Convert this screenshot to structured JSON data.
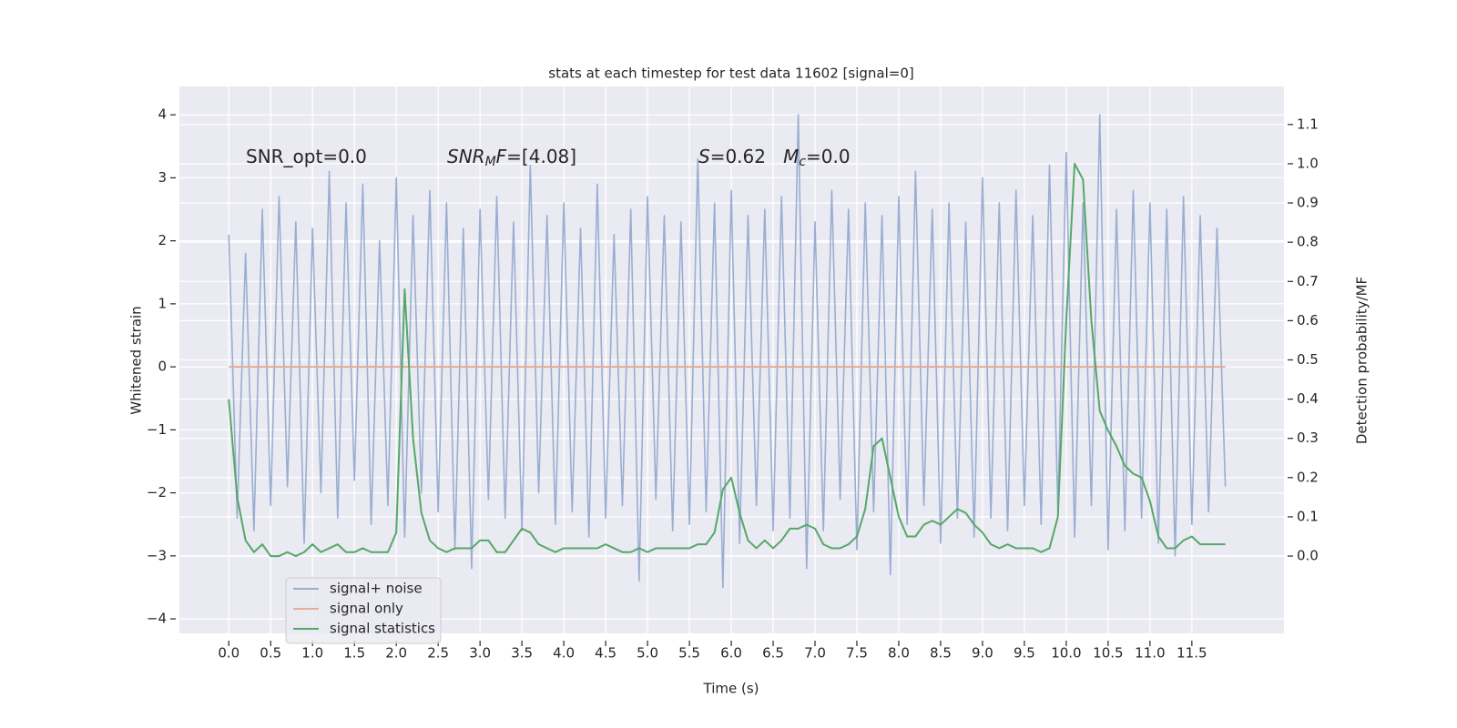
{
  "chart_data": {
    "type": "line",
    "title": "stats at each timestep for test data 11602 [signal=0]",
    "xlabel": "Time (s)",
    "ylabel": "Whitened strain",
    "y2label": "Detection probability/MF",
    "annotations": [
      {
        "parts": [
          {
            "text": "SNR_opt=0.0"
          }
        ]
      },
      {
        "parts": [
          {
            "text": "SNR",
            "italic": true
          },
          {
            "text": "M",
            "italic": true,
            "sub": true
          },
          {
            "text": "F",
            "italic": true
          },
          {
            "text": "=[4.08]"
          }
        ]
      },
      {
        "parts": [
          {
            "text": "S",
            "italic": true
          },
          {
            "text": "=0.62   "
          },
          {
            "text": "M",
            "italic": true
          },
          {
            "text": "c",
            "italic": true,
            "sub": true
          },
          {
            "text": "=0.0"
          }
        ]
      }
    ],
    "x": [
      0.0,
      0.1,
      0.2,
      0.3,
      0.4,
      0.5,
      0.6,
      0.7,
      0.8,
      0.9,
      1.0,
      1.1,
      1.2,
      1.3,
      1.4,
      1.5,
      1.6,
      1.7,
      1.8,
      1.9,
      2.0,
      2.1,
      2.2,
      2.3,
      2.4,
      2.5,
      2.6,
      2.7,
      2.8,
      2.9,
      3.0,
      3.1,
      3.2,
      3.3,
      3.4,
      3.5,
      3.6,
      3.7,
      3.8,
      3.9,
      4.0,
      4.1,
      4.2,
      4.3,
      4.4,
      4.5,
      4.6,
      4.7,
      4.8,
      4.9,
      5.0,
      5.1,
      5.2,
      5.3,
      5.4,
      5.5,
      5.6,
      5.7,
      5.8,
      5.9,
      6.0,
      6.1,
      6.2,
      6.3,
      6.4,
      6.5,
      6.6,
      6.7,
      6.8,
      6.9,
      7.0,
      7.1,
      7.2,
      7.3,
      7.4,
      7.5,
      7.6,
      7.7,
      7.8,
      7.9,
      8.0,
      8.1,
      8.2,
      8.3,
      8.4,
      8.5,
      8.6,
      8.7,
      8.8,
      8.9,
      9.0,
      9.1,
      9.2,
      9.3,
      9.4,
      9.5,
      9.6,
      9.7,
      9.8,
      9.9,
      10.0,
      10.1,
      10.2,
      10.3,
      10.4,
      10.5,
      10.6,
      10.7,
      10.8,
      10.9,
      11.0,
      11.1,
      11.2,
      11.3,
      11.4,
      11.5,
      11.6,
      11.7,
      11.8,
      11.9
    ],
    "series": [
      {
        "name": "signal+ noise",
        "color": "#9aadd2",
        "values": [
          2.1,
          -2.4,
          1.8,
          -2.6,
          2.5,
          -2.2,
          2.7,
          -1.9,
          2.3,
          -2.8,
          2.2,
          -2.0,
          3.1,
          -2.4,
          2.6,
          -1.8,
          2.9,
          -2.5,
          2.0,
          -2.2,
          3.0,
          -2.7,
          2.4,
          -2.0,
          2.8,
          -2.3,
          2.6,
          -2.9,
          2.2,
          -3.2,
          2.5,
          -2.1,
          2.7,
          -2.4,
          2.3,
          -2.6,
          3.2,
          -2.0,
          2.4,
          -2.5,
          2.6,
          -2.3,
          2.2,
          -2.7,
          2.9,
          -2.4,
          2.1,
          -2.2,
          2.5,
          -3.4,
          2.7,
          -2.1,
          2.4,
          -2.6,
          2.3,
          -2.5,
          3.3,
          -2.3,
          2.6,
          -3.5,
          2.8,
          -2.8,
          2.4,
          -2.2,
          2.5,
          -2.6,
          2.7,
          -2.4,
          4.0,
          -3.2,
          2.3,
          -2.6,
          2.8,
          -2.1,
          2.5,
          -2.9,
          2.6,
          -2.3,
          2.4,
          -3.3,
          2.7,
          -2.5,
          3.1,
          -2.2,
          2.5,
          -2.8,
          2.6,
          -2.4,
          2.3,
          -2.7,
          3.0,
          -2.4,
          2.6,
          -2.6,
          2.8,
          -2.2,
          2.4,
          -2.5,
          3.2,
          -2.3,
          3.4,
          -2.7,
          2.6,
          -2.2,
          4.0,
          -2.9,
          2.5,
          -2.6,
          2.8,
          -2.4,
          2.6,
          -2.8,
          2.5,
          -3.0,
          2.7,
          -2.5,
          2.4,
          -2.3,
          2.2,
          -1.9
        ]
      },
      {
        "name": "signal only",
        "color": "#e6ad96",
        "values": [
          0,
          0,
          0,
          0,
          0,
          0,
          0,
          0,
          0,
          0,
          0,
          0,
          0,
          0,
          0,
          0,
          0,
          0,
          0,
          0,
          0,
          0,
          0,
          0,
          0,
          0,
          0,
          0,
          0,
          0,
          0,
          0,
          0,
          0,
          0,
          0,
          0,
          0,
          0,
          0,
          0,
          0,
          0,
          0,
          0,
          0,
          0,
          0,
          0,
          0,
          0,
          0,
          0,
          0,
          0,
          0,
          0,
          0,
          0,
          0,
          0,
          0,
          0,
          0,
          0,
          0,
          0,
          0,
          0,
          0,
          0,
          0,
          0,
          0,
          0,
          0,
          0,
          0,
          0,
          0,
          0,
          0,
          0,
          0,
          0,
          0,
          0,
          0,
          0,
          0,
          0,
          0,
          0,
          0,
          0,
          0,
          0,
          0,
          0,
          0,
          0,
          0,
          0,
          0,
          0,
          0,
          0,
          0,
          0,
          0,
          0,
          0,
          0,
          0,
          0,
          0,
          0,
          0,
          0,
          0
        ]
      },
      {
        "name": "signal statistics",
        "color": "#55a868",
        "axis": "y2",
        "values": [
          0.4,
          0.15,
          0.04,
          0.01,
          0.03,
          0.0,
          0.0,
          0.01,
          0.0,
          0.01,
          0.03,
          0.01,
          0.02,
          0.03,
          0.01,
          0.01,
          0.02,
          0.01,
          0.01,
          0.01,
          0.06,
          0.68,
          0.3,
          0.11,
          0.04,
          0.02,
          0.01,
          0.02,
          0.02,
          0.02,
          0.04,
          0.04,
          0.01,
          0.01,
          0.04,
          0.07,
          0.06,
          0.03,
          0.02,
          0.01,
          0.02,
          0.02,
          0.02,
          0.02,
          0.02,
          0.03,
          0.02,
          0.01,
          0.01,
          0.02,
          0.01,
          0.02,
          0.02,
          0.02,
          0.02,
          0.02,
          0.03,
          0.03,
          0.06,
          0.17,
          0.2,
          0.11,
          0.04,
          0.02,
          0.04,
          0.02,
          0.04,
          0.07,
          0.07,
          0.08,
          0.07,
          0.03,
          0.02,
          0.02,
          0.03,
          0.05,
          0.12,
          0.28,
          0.3,
          0.2,
          0.1,
          0.05,
          0.05,
          0.08,
          0.09,
          0.08,
          0.1,
          0.12,
          0.11,
          0.08,
          0.06,
          0.03,
          0.02,
          0.03,
          0.02,
          0.02,
          0.02,
          0.01,
          0.02,
          0.1,
          0.6,
          1.0,
          0.96,
          0.6,
          0.37,
          0.32,
          0.28,
          0.23,
          0.21,
          0.2,
          0.14,
          0.05,
          0.02,
          0.02,
          0.04,
          0.05,
          0.03,
          0.03,
          0.03,
          0.03
        ]
      }
    ],
    "xlim": [
      -0.59,
      12.6
    ],
    "xticks": [
      {
        "value": 0,
        "label": "0.0"
      },
      {
        "value": 0.5,
        "label": "0.5"
      },
      {
        "value": 1,
        "label": "1.0"
      },
      {
        "value": 1.5,
        "label": "1.5"
      },
      {
        "value": 2,
        "label": "2.0"
      },
      {
        "value": 2.5,
        "label": "2.5"
      },
      {
        "value": 3,
        "label": "3.0"
      },
      {
        "value": 3.5,
        "label": "3.5"
      },
      {
        "value": 4,
        "label": "4.0"
      },
      {
        "value": 4.5,
        "label": "4.5"
      },
      {
        "value": 5,
        "label": "5.0"
      },
      {
        "value": 5.5,
        "label": "5.5"
      },
      {
        "value": 6,
        "label": "6.0"
      },
      {
        "value": 6.5,
        "label": "6.5"
      },
      {
        "value": 7,
        "label": "7.0"
      },
      {
        "value": 7.5,
        "label": "7.5"
      },
      {
        "value": 8,
        "label": "8.0"
      },
      {
        "value": 8.5,
        "label": "8.5"
      },
      {
        "value": 9,
        "label": "9.0"
      },
      {
        "value": 9.5,
        "label": "9.5"
      },
      {
        "value": 10,
        "label": "10.0"
      },
      {
        "value": 10.5,
        "label": "10.5"
      },
      {
        "value": 11,
        "label": "11.0"
      },
      {
        "value": 11.5,
        "label": "11.5"
      }
    ],
    "ylim": [
      -4.23,
      4.45
    ],
    "yticks": [
      {
        "value": -4,
        "label": "−4"
      },
      {
        "value": -3,
        "label": "−3"
      },
      {
        "value": -2,
        "label": "−2"
      },
      {
        "value": -1,
        "label": "−1"
      },
      0,
      1,
      2,
      3,
      4
    ],
    "y2lim": [
      -0.197,
      1.197
    ],
    "y2ticks": [
      {
        "value": 0,
        "label": "0.0"
      },
      {
        "value": 0.1,
        "label": "0.1"
      },
      {
        "value": 0.2,
        "label": "0.2"
      },
      {
        "value": 0.3,
        "label": "0.3"
      },
      {
        "value": 0.4,
        "label": "0.4"
      },
      {
        "value": 0.5,
        "label": "0.5"
      },
      {
        "value": 0.6,
        "label": "0.6"
      },
      {
        "value": 0.7,
        "label": "0.7"
      },
      {
        "value": 0.8,
        "label": "0.8"
      },
      {
        "value": 0.9,
        "label": "0.9"
      },
      {
        "value": 1.0,
        "label": "1.0"
      },
      {
        "value": 1.1,
        "label": "1.1"
      }
    ],
    "grid": true,
    "legend": "lower left",
    "background": "#eaeaf2"
  }
}
